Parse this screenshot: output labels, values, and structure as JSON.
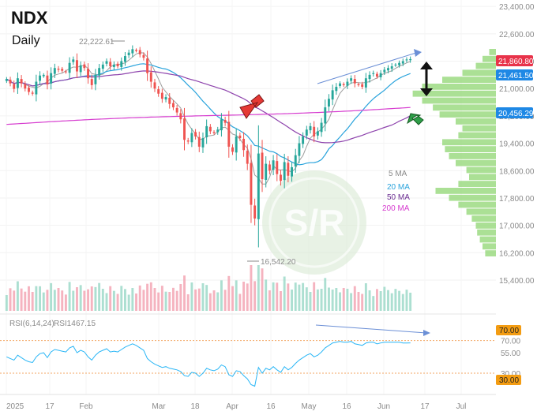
{
  "header": {
    "symbol": "NDX",
    "interval": "Daily"
  },
  "colors": {
    "up": "#26a69a",
    "down": "#ef5350",
    "ma5": "#9e9e9e",
    "ma20": "#29a3dc",
    "ma50": "#8e44ad",
    "ma200": "#d63ccf",
    "profile": "#8fd672",
    "price_tag": "#e8334a",
    "ma20_tag": "#1e88e5",
    "ma200_tag": "#1e88e5",
    "rsi_line": "#29b6f6",
    "rsi_upper_tag": "#f39c12",
    "rsi_lower_tag": "#f39c12"
  },
  "chart_data": {
    "type": "candlestick",
    "x_tick_labels": [
      "2025",
      "17",
      "Feb",
      "Mar",
      "18",
      "Apr",
      "16",
      "May",
      "16",
      "Jun",
      "17",
      "Jul"
    ],
    "x_tick_dates": [
      "2025-01-02",
      "2025-01-17",
      "2025-02-03",
      "2025-03-03",
      "2025-03-18",
      "2025-04-01",
      "2025-04-16",
      "2025-05-01",
      "2025-05-16",
      "2025-06-02",
      "2025-06-17",
      "2025-07-01"
    ],
    "y_ticks": [
      15400,
      16200,
      17000,
      17800,
      18600,
      19400,
      20200,
      21000,
      21800,
      22600,
      23400
    ],
    "ylim": [
      15100,
      23450
    ],
    "closes": [
      21280,
      21150,
      20990,
      21300,
      21150,
      21000,
      20900,
      20850,
      21200,
      21380,
      21400,
      21120,
      21450,
      21600,
      21550,
      21520,
      21480,
      21750,
      21850,
      21500,
      21680,
      21600,
      21300,
      21100,
      21400,
      21600,
      21700,
      21800,
      21650,
      21700,
      21650,
      21800,
      21950,
      22050,
      22150,
      22100,
      22000,
      21900,
      21450,
      21200,
      21000,
      20850,
      20700,
      20750,
      20550,
      20450,
      20300,
      20100,
      19500,
      19450,
      19700,
      19600,
      19300,
      19550,
      19900,
      19750,
      19700,
      19800,
      20100,
      20000,
      19300,
      19150,
      19600,
      19550,
      19200,
      18800,
      17600,
      17200,
      19100,
      18350,
      18800,
      18600,
      18900,
      18500,
      18300,
      18850,
      18450,
      18700,
      19050,
      19400,
      19600,
      19800,
      19900,
      19600,
      19750,
      20000,
      20450,
      20700,
      20950,
      21050,
      21150,
      21100,
      21200,
      21300,
      21150,
      21100,
      21050,
      21300,
      21400,
      21450,
      21350,
      21450,
      21550,
      21600,
      21650,
      21700,
      21750,
      21800,
      21850,
      21860.8
    ],
    "annotations": {
      "high_label": "22,222.61",
      "low_label": "16,542.20"
    },
    "price_tags": {
      "last": "21,860.80",
      "ma20": "21,461.50",
      "ma200": "20,456.29"
    },
    "moving_averages": {
      "ma5": {
        "label": "5 MA"
      },
      "ma20": {
        "label": "20 MA",
        "value": 21461.5
      },
      "ma50": {
        "label": "50 MA"
      },
      "ma200": {
        "label": "200 MA",
        "value": 20456.29
      }
    },
    "volume_profile": [
      5,
      10,
      15,
      25,
      40,
      55,
      62,
      55,
      47,
      42,
      30,
      25,
      28,
      40,
      38,
      35,
      30,
      22,
      20,
      28,
      45,
      35,
      28,
      22,
      18,
      15,
      14,
      12,
      10,
      8
    ],
    "rsi": {
      "label": "RSI(6,14,24)",
      "series_label": "RSI14",
      "last": "67.15",
      "y_ticks": [
        70,
        55,
        30
      ],
      "upper_tag": "70.00",
      "lower_tag": "30.00",
      "values": [
        50,
        48,
        46,
        52,
        49,
        46,
        44,
        43,
        50,
        54,
        55,
        49,
        56,
        59,
        58,
        57,
        56,
        61,
        63,
        55,
        58,
        56,
        50,
        46,
        52,
        56,
        58,
        60,
        56,
        57,
        56,
        59,
        62,
        64,
        66,
        64,
        61,
        58,
        48,
        44,
        41,
        39,
        37,
        38,
        36,
        35,
        34,
        32,
        27,
        26,
        31,
        30,
        26,
        30,
        36,
        34,
        33,
        35,
        40,
        38,
        28,
        26,
        33,
        32,
        27,
        23,
        16,
        14,
        37,
        30,
        36,
        34,
        38,
        34,
        31,
        38,
        34,
        37,
        42,
        46,
        49,
        52,
        54,
        50,
        52,
        56,
        61,
        64,
        67,
        68,
        69,
        68,
        68,
        69,
        66,
        65,
        64,
        67,
        68,
        68,
        66,
        67,
        68,
        68,
        68,
        68,
        68,
        67,
        67,
        67.15
      ]
    }
  }
}
